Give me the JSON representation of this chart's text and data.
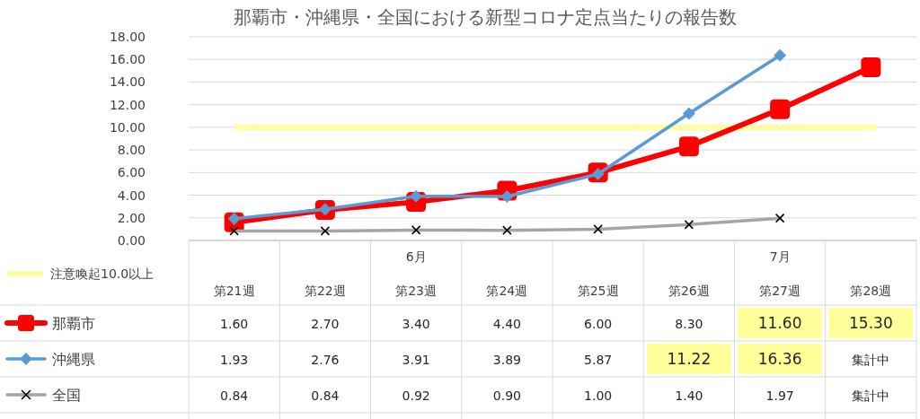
{
  "chart_data": {
    "type": "line",
    "title": "那覇市・沖縄県・全国における新型コロナ定点当たりの報告数",
    "categories": [
      "第21週",
      "第22週",
      "6月第23週",
      "第24週",
      "第25週",
      "第26週",
      "7月第27週",
      "第28週"
    ],
    "series": [
      {
        "name": "那覇市",
        "color": "#ff0000",
        "marker": "square",
        "values": [
          1.6,
          2.7,
          3.4,
          4.4,
          6.0,
          8.3,
          11.6,
          15.3
        ],
        "value_labels": [
          "1.60",
          "2.70",
          "3.40",
          "4.40",
          "6.00",
          "8.30",
          "11.60",
          "15.30"
        ]
      },
      {
        "name": "沖縄県",
        "color": "#5b9bd5",
        "marker": "diamond",
        "values": [
          1.93,
          2.76,
          3.91,
          3.89,
          5.87,
          11.22,
          16.36,
          null
        ],
        "value_labels": [
          "1.93",
          "2.76",
          "3.91",
          "3.89",
          "5.87",
          "11.22",
          "16.36",
          "集計中"
        ]
      },
      {
        "name": "全国",
        "color": "#a5a5a5",
        "marker": "cross",
        "values": [
          0.84,
          0.84,
          0.92,
          0.9,
          1.0,
          1.4,
          1.97,
          null
        ],
        "value_labels": [
          "0.84",
          "0.84",
          "0.92",
          "0.90",
          "1.00",
          "1.40",
          "1.97",
          "集計中"
        ]
      }
    ],
    "ylim": [
      0,
      18
    ],
    "yticks": [
      {
        "value": 0,
        "label": "0.00"
      },
      {
        "value": 2,
        "label": "2.00"
      },
      {
        "value": 4,
        "label": "4.00"
      },
      {
        "value": 6,
        "label": "6.00"
      },
      {
        "value": 8,
        "label": "8.00"
      },
      {
        "value": 10,
        "label": "10.00"
      },
      {
        "value": 12,
        "label": "12.00"
      },
      {
        "value": 14,
        "label": "14.00"
      },
      {
        "value": 16,
        "label": "16.00"
      },
      {
        "value": 18,
        "label": "18.00"
      }
    ],
    "grid": "y",
    "legend": "bottom left",
    "ref_lines": [
      {
        "axis": "y",
        "value": 10,
        "label": "注意喚起10.0以上",
        "color": "#ffff99"
      }
    ]
  }
}
